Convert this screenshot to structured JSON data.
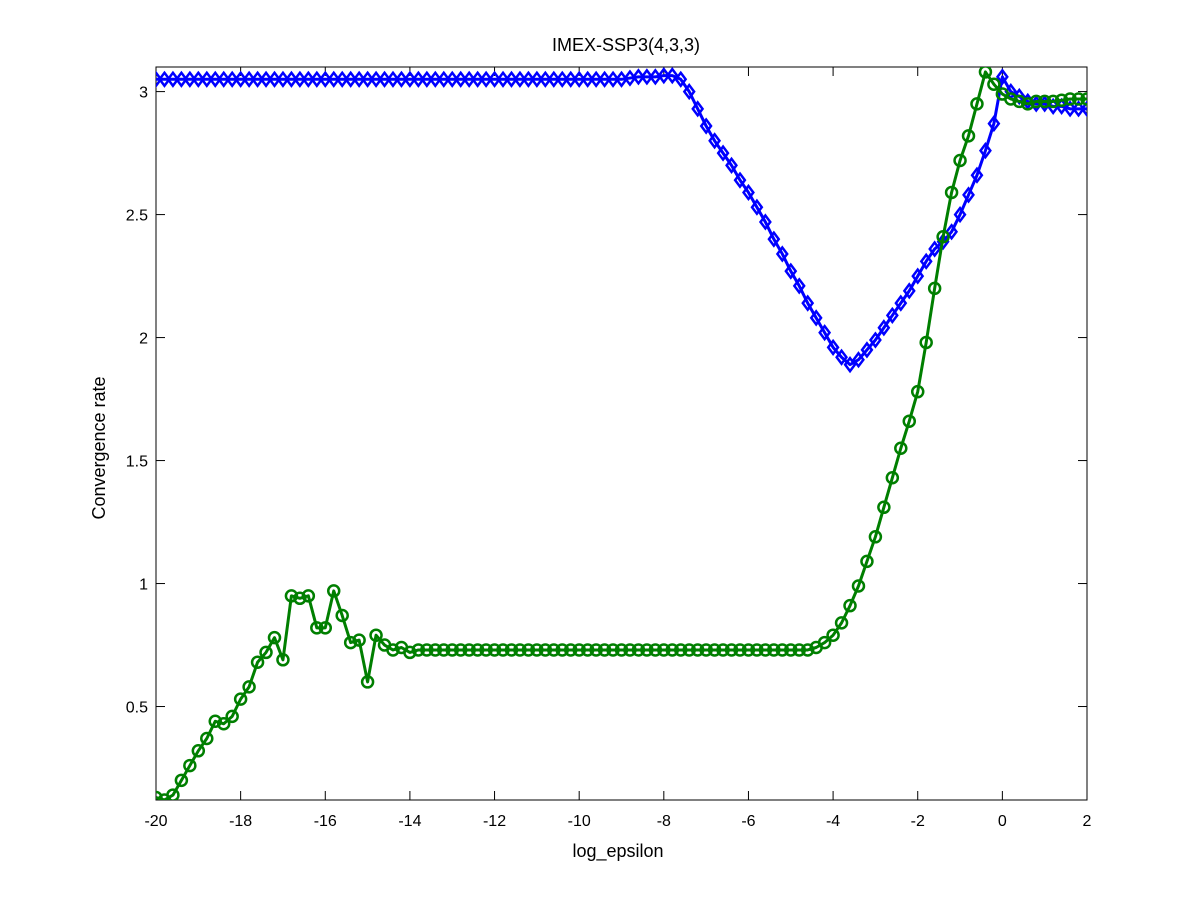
{
  "chart_data": {
    "type": "line",
    "title": "IMEX-SSP3(4,3,3)",
    "xlabel": "log_epsilon",
    "ylabel": "Convergence rate",
    "xlim": [
      -20,
      2
    ],
    "ylim": [
      0.12,
      3.1
    ],
    "xticks": [
      -20,
      -18,
      -16,
      -14,
      -12,
      -10,
      -8,
      -6,
      -4,
      -2,
      0,
      2
    ],
    "xtick_labels": [
      "-20",
      "-18",
      "-16",
      "-14",
      "-12",
      "-10",
      "-8",
      "-6",
      "-4",
      "-2",
      "0",
      "2"
    ],
    "yticks": [
      0.5,
      1,
      1.5,
      2,
      2.5,
      3
    ],
    "ytick_labels": [
      "0.5",
      "1",
      "1.5",
      "2",
      "2.5",
      "3"
    ],
    "grid": false,
    "series": [
      {
        "color": "#0000ff",
        "marker": "diamond",
        "x": [
          -20.0,
          -19.8,
          -19.6,
          -19.4,
          -19.2,
          -19.0,
          -18.8,
          -18.6,
          -18.4,
          -18.2,
          -18.0,
          -17.8,
          -17.6,
          -17.4,
          -17.2,
          -17.0,
          -16.8,
          -16.6,
          -16.4,
          -16.2,
          -16.0,
          -15.8,
          -15.6,
          -15.4,
          -15.2,
          -15.0,
          -14.8,
          -14.6,
          -14.4,
          -14.2,
          -14.0,
          -13.8,
          -13.6,
          -13.4,
          -13.2,
          -13.0,
          -12.8,
          -12.6,
          -12.4,
          -12.2,
          -12.0,
          -11.8,
          -11.6,
          -11.4,
          -11.2,
          -11.0,
          -10.8,
          -10.6,
          -10.4,
          -10.2,
          -10.0,
          -9.8,
          -9.6,
          -9.4,
          -9.2,
          -9.0,
          -8.8,
          -8.6,
          -8.4,
          -8.2,
          -8.0,
          -7.8,
          -7.6,
          -7.4,
          -7.2,
          -7.0,
          -6.8,
          -6.6,
          -6.4,
          -6.2,
          -6.0,
          -5.8,
          -5.6,
          -5.4,
          -5.2,
          -5.0,
          -4.8,
          -4.6,
          -4.4,
          -4.2,
          -4.0,
          -3.8,
          -3.6,
          -3.4,
          -3.2,
          -3.0,
          -2.8,
          -2.6,
          -2.4,
          -2.2,
          -2.0,
          -1.8,
          -1.6,
          -1.4,
          -1.2,
          -1.0,
          -0.8,
          -0.6,
          -0.4,
          -0.2,
          0.0,
          0.2,
          0.4,
          0.6,
          0.8,
          1.0,
          1.2,
          1.4,
          1.6,
          1.8,
          2.0
        ],
        "y": [
          3.05,
          3.05,
          3.05,
          3.05,
          3.05,
          3.05,
          3.05,
          3.05,
          3.05,
          3.05,
          3.05,
          3.05,
          3.05,
          3.05,
          3.05,
          3.05,
          3.05,
          3.05,
          3.05,
          3.05,
          3.05,
          3.05,
          3.05,
          3.05,
          3.05,
          3.05,
          3.05,
          3.05,
          3.05,
          3.05,
          3.05,
          3.05,
          3.05,
          3.05,
          3.05,
          3.05,
          3.05,
          3.05,
          3.05,
          3.05,
          3.05,
          3.05,
          3.05,
          3.05,
          3.05,
          3.05,
          3.05,
          3.05,
          3.05,
          3.05,
          3.05,
          3.05,
          3.05,
          3.05,
          3.05,
          3.05,
          3.055,
          3.06,
          3.06,
          3.06,
          3.065,
          3.065,
          3.05,
          3.0,
          2.93,
          2.86,
          2.8,
          2.75,
          2.7,
          2.64,
          2.59,
          2.53,
          2.47,
          2.4,
          2.34,
          2.27,
          2.21,
          2.14,
          2.08,
          2.02,
          1.96,
          1.92,
          1.89,
          1.91,
          1.95,
          1.99,
          2.04,
          2.09,
          2.14,
          2.19,
          2.25,
          2.31,
          2.36,
          2.39,
          2.43,
          2.5,
          2.58,
          2.66,
          2.76,
          2.87,
          3.06,
          3.0,
          2.98,
          2.96,
          2.95,
          2.95,
          2.94,
          2.94,
          2.93,
          2.93,
          2.93
        ]
      },
      {
        "color": "#007f00",
        "marker": "circle",
        "x": [
          -20.0,
          -19.8,
          -19.6,
          -19.4,
          -19.2,
          -19.0,
          -18.8,
          -18.6,
          -18.4,
          -18.2,
          -18.0,
          -17.8,
          -17.6,
          -17.4,
          -17.2,
          -17.0,
          -16.8,
          -16.6,
          -16.4,
          -16.2,
          -16.0,
          -15.8,
          -15.6,
          -15.4,
          -15.2,
          -15.0,
          -14.8,
          -14.6,
          -14.4,
          -14.2,
          -14.0,
          -13.8,
          -13.6,
          -13.4,
          -13.2,
          -13.0,
          -12.8,
          -12.6,
          -12.4,
          -12.2,
          -12.0,
          -11.8,
          -11.6,
          -11.4,
          -11.2,
          -11.0,
          -10.8,
          -10.6,
          -10.4,
          -10.2,
          -10.0,
          -9.8,
          -9.6,
          -9.4,
          -9.2,
          -9.0,
          -8.8,
          -8.6,
          -8.4,
          -8.2,
          -8.0,
          -7.8,
          -7.6,
          -7.4,
          -7.2,
          -7.0,
          -6.8,
          -6.6,
          -6.4,
          -6.2,
          -6.0,
          -5.8,
          -5.6,
          -5.4,
          -5.2,
          -5.0,
          -4.8,
          -4.6,
          -4.4,
          -4.2,
          -4.0,
          -3.8,
          -3.6,
          -3.4,
          -3.2,
          -3.0,
          -2.8,
          -2.6,
          -2.4,
          -2.2,
          -2.0,
          -1.8,
          -1.6,
          -1.4,
          -1.2,
          -1.0,
          -0.8,
          -0.6,
          -0.4,
          -0.2,
          0.0,
          0.2,
          0.4,
          0.6,
          0.8,
          1.0,
          1.2,
          1.4,
          1.6,
          1.8,
          2.0
        ],
        "y": [
          0.13,
          0.12,
          0.14,
          0.2,
          0.26,
          0.32,
          0.37,
          0.44,
          0.43,
          0.46,
          0.53,
          0.58,
          0.68,
          0.72,
          0.78,
          0.69,
          0.95,
          0.94,
          0.95,
          0.82,
          0.82,
          0.97,
          0.87,
          0.76,
          0.77,
          0.6,
          0.79,
          0.75,
          0.73,
          0.74,
          0.72,
          0.73,
          0.73,
          0.73,
          0.73,
          0.73,
          0.73,
          0.73,
          0.73,
          0.73,
          0.73,
          0.73,
          0.73,
          0.73,
          0.73,
          0.73,
          0.73,
          0.73,
          0.73,
          0.73,
          0.73,
          0.73,
          0.73,
          0.73,
          0.73,
          0.73,
          0.73,
          0.73,
          0.73,
          0.73,
          0.73,
          0.73,
          0.73,
          0.73,
          0.73,
          0.73,
          0.73,
          0.73,
          0.73,
          0.73,
          0.73,
          0.73,
          0.73,
          0.73,
          0.73,
          0.73,
          0.73,
          0.73,
          0.74,
          0.76,
          0.79,
          0.84,
          0.91,
          0.99,
          1.09,
          1.19,
          1.31,
          1.43,
          1.55,
          1.66,
          1.78,
          1.98,
          2.2,
          2.41,
          2.59,
          2.72,
          2.82,
          2.95,
          3.08,
          3.03,
          2.99,
          2.97,
          2.96,
          2.95,
          2.96,
          2.96,
          2.96,
          2.965,
          2.97,
          2.97,
          2.97
        ]
      }
    ]
  }
}
